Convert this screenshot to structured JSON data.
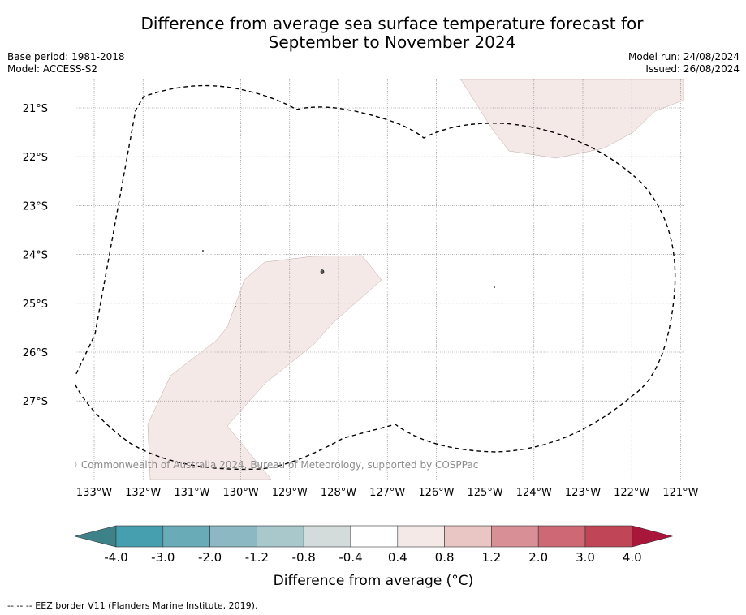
{
  "header": {
    "title_line1": "Difference from average sea surface temperature forecast for",
    "title_line2": "September to November 2024",
    "base_period": "Base period: 1981-2018",
    "model": "Model: ACCESS-S2",
    "model_run": "Model run: 24/08/2024",
    "issued": "Issued: 26/08/2024"
  },
  "map": {
    "lat_labels": [
      "21°S",
      "22°S",
      "23°S",
      "24°S",
      "25°S",
      "26°S",
      "27°S"
    ],
    "lon_labels": [
      "133°W",
      "132°W",
      "131°W",
      "130°W",
      "129°W",
      "128°W",
      "127°W",
      "126°W",
      "125°W",
      "124°W",
      "123°W",
      "122°W",
      "121°W"
    ],
    "anomaly_fill_color": "#f5e9e8",
    "eez_border_color": "#000000",
    "copyright": "© Commonwealth of Australia 2024, Bureau of Meteorology, supported by COSPPac"
  },
  "colorbar": {
    "labels": [
      "-4.0",
      "-3.0",
      "-2.0",
      "-1.2",
      "-0.8",
      "-0.4",
      "0.4",
      "0.8",
      "1.2",
      "2.0",
      "3.0",
      "4.0"
    ],
    "under_color": "#3d8189",
    "over_color": "#a8163a",
    "colors": [
      "#469fae",
      "#6aabb8",
      "#8bb8c3",
      "#a8c8cc",
      "#d3dbdb",
      "#ffffff",
      "#f5e9e8",
      "#e9c5c3",
      "#d98f96",
      "#cd6874",
      "#c04556"
    ],
    "title": "Difference from average (°C)"
  },
  "footnote": "--  --  -- EEZ border V11 (Flanders Marine Institute, 2019)."
}
